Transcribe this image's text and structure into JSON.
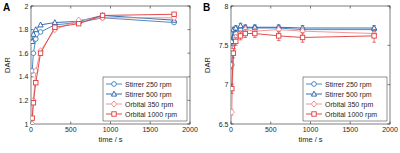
{
  "chart_data": [
    {
      "type": "line",
      "title": "A",
      "x_label": "time / s",
      "y_label": "DAR",
      "x": [
        15,
        30,
        60,
        120,
        300,
        600,
        900,
        1800
      ],
      "xlim": [
        0,
        2000
      ],
      "xticks": [
        0,
        500,
        1000,
        1500,
        2000
      ],
      "ylim": [
        1,
        2
      ],
      "yticks": [
        1,
        1.2,
        1.4,
        1.6,
        1.8,
        2
      ],
      "grid": false,
      "legend": "lower right",
      "series": [
        {
          "name": "Stirrer 250 rpm",
          "color": "#3a7fc0",
          "marker": "circle",
          "line_style": "solid",
          "values": [
            1.45,
            1.6,
            1.72,
            1.78,
            1.84,
            1.86,
            1.9,
            1.86
          ]
        },
        {
          "name": "Stirrer 500 rpm",
          "color": "#1f5fa8",
          "marker": "triangle",
          "line_style": "solid",
          "values": [
            1.7,
            1.76,
            1.8,
            1.84,
            1.86,
            1.87,
            1.92,
            1.88
          ]
        },
        {
          "name": "Orbital 350 rpm",
          "color": "#f28b8b",
          "marker": "diamond",
          "line_style": "solid",
          "values": [
            1.0,
            1.2,
            1.45,
            1.62,
            1.8,
            1.88,
            1.9,
            1.9
          ]
        },
        {
          "name": "Orbital 1000 rpm",
          "color": "#e03a3a",
          "marker": "square",
          "line_style": "solid",
          "values": [
            1.05,
            1.18,
            1.35,
            1.6,
            1.82,
            1.85,
            1.92,
            1.93
          ]
        }
      ]
    },
    {
      "type": "line",
      "title": "B",
      "x_label": "time / s",
      "y_label": "DAR",
      "x": [
        10,
        30,
        60,
        120,
        180,
        300,
        600,
        900,
        1800
      ],
      "xlim": [
        0,
        2000
      ],
      "xticks": [
        0,
        500,
        1000,
        1500,
        2000
      ],
      "ylim": [
        6.5,
        8
      ],
      "yticks": [
        6.5,
        7,
        7.5,
        8
      ],
      "grid": false,
      "legend": "lower right",
      "series": [
        {
          "name": "Stirrer 250 rpm",
          "color": "#3a7fc0",
          "marker": "circle",
          "line_style": "solid",
          "values": [
            7.25,
            7.6,
            7.65,
            7.7,
            7.72,
            7.72,
            7.72,
            7.7,
            7.7
          ],
          "errors": [
            0.05,
            0.04,
            0.03,
            0.03,
            0.03,
            0.03,
            0.03,
            0.03,
            0.03
          ]
        },
        {
          "name": "Stirrer 500 rpm",
          "color": "#1f5fa8",
          "marker": "triangle",
          "line_style": "solid",
          "values": [
            7.55,
            7.7,
            7.72,
            7.75,
            7.73,
            7.73,
            7.73,
            7.72,
            7.72
          ],
          "errors": [
            0.05,
            0.03,
            0.03,
            0.03,
            0.03,
            0.03,
            0.03,
            0.03,
            0.03
          ]
        },
        {
          "name": "Orbital 350 rpm",
          "color": "#f28b8b",
          "marker": "diamond",
          "line_style": "solid",
          "values": [
            6.65,
            7.45,
            7.6,
            7.65,
            7.7,
            7.68,
            7.7,
            7.68,
            7.65
          ],
          "errors": [
            0.04,
            0.05,
            0.04,
            0.04,
            0.04,
            0.04,
            0.04,
            0.05,
            0.05
          ]
        },
        {
          "name": "Orbital 1000 rpm",
          "color": "#e03a3a",
          "marker": "square",
          "line_style": "solid",
          "values": [
            6.95,
            7.4,
            7.55,
            7.62,
            7.65,
            7.65,
            7.62,
            7.6,
            7.62
          ],
          "errors": [
            0.06,
            0.06,
            0.05,
            0.05,
            0.05,
            0.05,
            0.06,
            0.06,
            0.08
          ]
        }
      ]
    }
  ]
}
